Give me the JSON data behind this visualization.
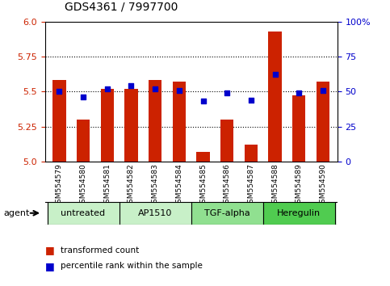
{
  "title": "GDS4361 / 7997700",
  "samples": [
    "GSM554579",
    "GSM554580",
    "GSM554581",
    "GSM554582",
    "GSM554583",
    "GSM554584",
    "GSM554585",
    "GSM554586",
    "GSM554587",
    "GSM554588",
    "GSM554589",
    "GSM554590"
  ],
  "red_values": [
    5.58,
    5.3,
    5.52,
    5.52,
    5.58,
    5.57,
    5.07,
    5.3,
    5.12,
    5.93,
    5.47,
    5.57
  ],
  "blue_values": [
    50,
    46,
    52,
    54,
    52,
    51,
    43,
    49,
    44,
    62,
    49,
    51
  ],
  "ylim_left": [
    5.0,
    6.0
  ],
  "ylim_right": [
    0,
    100
  ],
  "yticks_left": [
    5.0,
    5.25,
    5.5,
    5.75,
    6.0
  ],
  "yticks_right": [
    0,
    25,
    50,
    75,
    100
  ],
  "groups": [
    {
      "label": "untreated",
      "indices": [
        0,
        1,
        2
      ],
      "color": "#c8f0c8"
    },
    {
      "label": "AP1510",
      "indices": [
        3,
        4,
        5
      ],
      "color": "#c8f0c8"
    },
    {
      "label": "TGF-alpha",
      "indices": [
        6,
        7,
        8
      ],
      "color": "#90e090"
    },
    {
      "label": "Heregulin",
      "indices": [
        9,
        10,
        11
      ],
      "color": "#50cc50"
    }
  ],
  "bar_color": "#cc2200",
  "dot_color": "#0000cc",
  "bar_width": 0.55,
  "bg_plot": "#ffffff",
  "bg_xtick": "#c8c8c8",
  "left_axis_color": "#cc2200",
  "right_axis_color": "#0000cc",
  "title_fontsize": 10,
  "tick_fontsize": 8,
  "sample_fontsize": 6.5,
  "group_fontsize": 8,
  "legend_fontsize": 7.5
}
